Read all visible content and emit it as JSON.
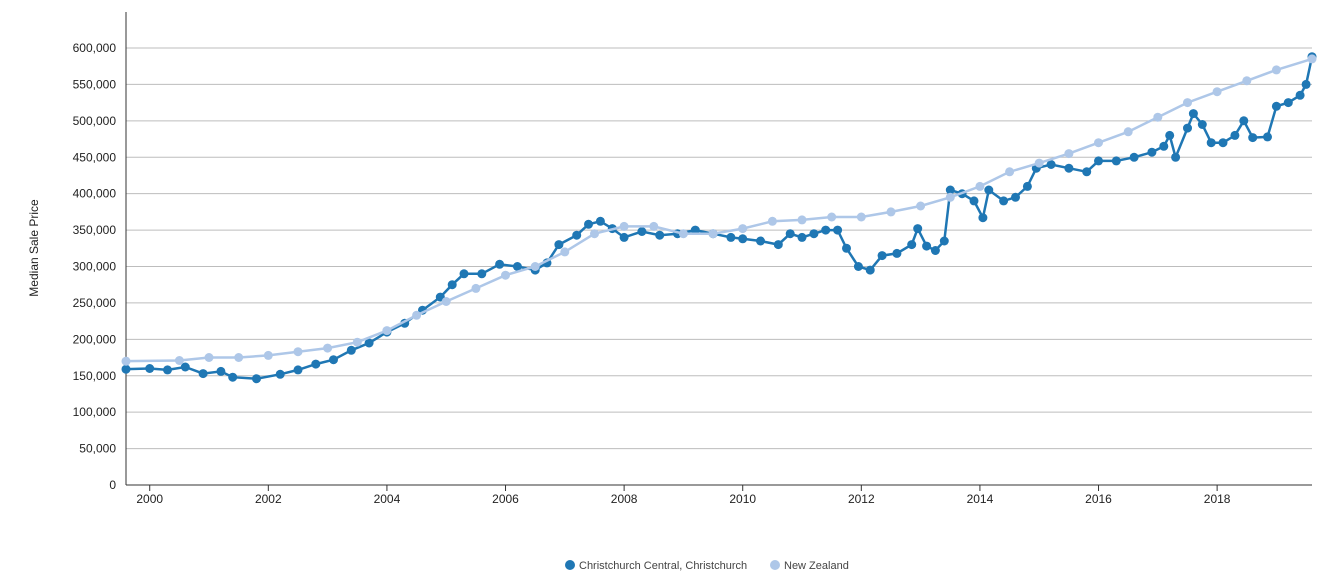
{
  "chart_data": {
    "type": "line",
    "title": "",
    "xlabel": "",
    "ylabel": "Median Sale Price",
    "ylim": [
      0,
      600000
    ],
    "xlim": [
      1999.6,
      2019.6
    ],
    "y_ticks": [
      0,
      50000,
      100000,
      150000,
      200000,
      250000,
      300000,
      350000,
      400000,
      450000,
      500000,
      550000,
      600000
    ],
    "y_tick_labels": [
      "0",
      "50,000",
      "100,000",
      "150,000",
      "200,000",
      "250,000",
      "300,000",
      "350,000",
      "400,000",
      "450,000",
      "500,000",
      "550,000",
      "600,000"
    ],
    "x_ticks": [
      2000,
      2002,
      2004,
      2006,
      2008,
      2010,
      2012,
      2014,
      2016,
      2018
    ],
    "x_tick_labels": [
      "2000",
      "2002",
      "2004",
      "2006",
      "2008",
      "2010",
      "2012",
      "2014",
      "2016",
      "2018"
    ],
    "grid": true,
    "legend_position": "bottom-center",
    "series": [
      {
        "name": "Christchurch Central, Christchurch",
        "color": "#1f77b4",
        "points": [
          [
            1999.6,
            159000
          ],
          [
            2000.0,
            160000
          ],
          [
            2000.3,
            158000
          ],
          [
            2000.6,
            162000
          ],
          [
            2000.9,
            153000
          ],
          [
            2001.2,
            156000
          ],
          [
            2001.4,
            148000
          ],
          [
            2001.8,
            146000
          ],
          [
            2002.2,
            152000
          ],
          [
            2002.5,
            158000
          ],
          [
            2002.8,
            166000
          ],
          [
            2003.1,
            172000
          ],
          [
            2003.4,
            185000
          ],
          [
            2003.7,
            195000
          ],
          [
            2004.0,
            210000
          ],
          [
            2004.3,
            222000
          ],
          [
            2004.6,
            240000
          ],
          [
            2004.9,
            258000
          ],
          [
            2005.1,
            275000
          ],
          [
            2005.3,
            290000
          ],
          [
            2005.6,
            290000
          ],
          [
            2005.9,
            303000
          ],
          [
            2006.2,
            300000
          ],
          [
            2006.5,
            295000
          ],
          [
            2006.7,
            305000
          ],
          [
            2006.9,
            330000
          ],
          [
            2007.2,
            343000
          ],
          [
            2007.4,
            358000
          ],
          [
            2007.6,
            362000
          ],
          [
            2007.8,
            352000
          ],
          [
            2008.0,
            340000
          ],
          [
            2008.3,
            348000
          ],
          [
            2008.6,
            343000
          ],
          [
            2008.9,
            345000
          ],
          [
            2009.2,
            350000
          ],
          [
            2009.5,
            345000
          ],
          [
            2009.8,
            340000
          ],
          [
            2010.0,
            338000
          ],
          [
            2010.3,
            335000
          ],
          [
            2010.6,
            330000
          ],
          [
            2010.8,
            345000
          ],
          [
            2011.0,
            340000
          ],
          [
            2011.2,
            345000
          ],
          [
            2011.4,
            350000
          ],
          [
            2011.6,
            350000
          ],
          [
            2011.75,
            325000
          ],
          [
            2011.95,
            300000
          ],
          [
            2012.15,
            295000
          ],
          [
            2012.35,
            315000
          ],
          [
            2012.6,
            318000
          ],
          [
            2012.85,
            330000
          ],
          [
            2012.95,
            352000
          ],
          [
            2013.1,
            328000
          ],
          [
            2013.25,
            322000
          ],
          [
            2013.4,
            335000
          ],
          [
            2013.5,
            405000
          ],
          [
            2013.7,
            400000
          ],
          [
            2013.9,
            390000
          ],
          [
            2014.05,
            367000
          ],
          [
            2014.15,
            405000
          ],
          [
            2014.4,
            390000
          ],
          [
            2014.6,
            395000
          ],
          [
            2014.8,
            410000
          ],
          [
            2014.95,
            435000
          ],
          [
            2015.2,
            440000
          ],
          [
            2015.5,
            435000
          ],
          [
            2015.8,
            430000
          ],
          [
            2016.0,
            445000
          ],
          [
            2016.3,
            445000
          ],
          [
            2016.6,
            450000
          ],
          [
            2016.9,
            457000
          ],
          [
            2017.1,
            465000
          ],
          [
            2017.2,
            480000
          ],
          [
            2017.3,
            450000
          ],
          [
            2017.5,
            490000
          ],
          [
            2017.6,
            510000
          ],
          [
            2017.75,
            495000
          ],
          [
            2017.9,
            470000
          ],
          [
            2018.1,
            470000
          ],
          [
            2018.3,
            480000
          ],
          [
            2018.45,
            500000
          ],
          [
            2018.6,
            477000
          ],
          [
            2018.85,
            478000
          ],
          [
            2019.0,
            520000
          ],
          [
            2019.2,
            525000
          ],
          [
            2019.4,
            535000
          ],
          [
            2019.5,
            550000
          ],
          [
            2019.6,
            588000
          ]
        ]
      },
      {
        "name": "New Zealand",
        "color": "#aec7e8",
        "points": [
          [
            1999.6,
            170000
          ],
          [
            2000.5,
            171000
          ],
          [
            2001.0,
            175000
          ],
          [
            2001.5,
            175000
          ],
          [
            2002.0,
            178000
          ],
          [
            2002.5,
            183000
          ],
          [
            2003.0,
            188000
          ],
          [
            2003.5,
            196000
          ],
          [
            2004.0,
            212000
          ],
          [
            2004.5,
            233000
          ],
          [
            2005.0,
            252000
          ],
          [
            2005.5,
            270000
          ],
          [
            2006.0,
            288000
          ],
          [
            2006.5,
            300000
          ],
          [
            2007.0,
            320000
          ],
          [
            2007.5,
            345000
          ],
          [
            2008.0,
            355000
          ],
          [
            2008.5,
            355000
          ],
          [
            2009.0,
            345000
          ],
          [
            2009.5,
            345000
          ],
          [
            2010.0,
            352000
          ],
          [
            2010.5,
            362000
          ],
          [
            2011.0,
            364000
          ],
          [
            2011.5,
            368000
          ],
          [
            2012.0,
            368000
          ],
          [
            2012.5,
            375000
          ],
          [
            2013.0,
            383000
          ],
          [
            2013.5,
            395000
          ],
          [
            2014.0,
            410000
          ],
          [
            2014.5,
            430000
          ],
          [
            2015.0,
            442000
          ],
          [
            2015.5,
            455000
          ],
          [
            2016.0,
            470000
          ],
          [
            2016.5,
            485000
          ],
          [
            2017.0,
            505000
          ],
          [
            2017.5,
            525000
          ],
          [
            2018.0,
            540000
          ],
          [
            2018.5,
            555000
          ],
          [
            2019.0,
            570000
          ],
          [
            2019.6,
            585000
          ]
        ]
      }
    ]
  }
}
